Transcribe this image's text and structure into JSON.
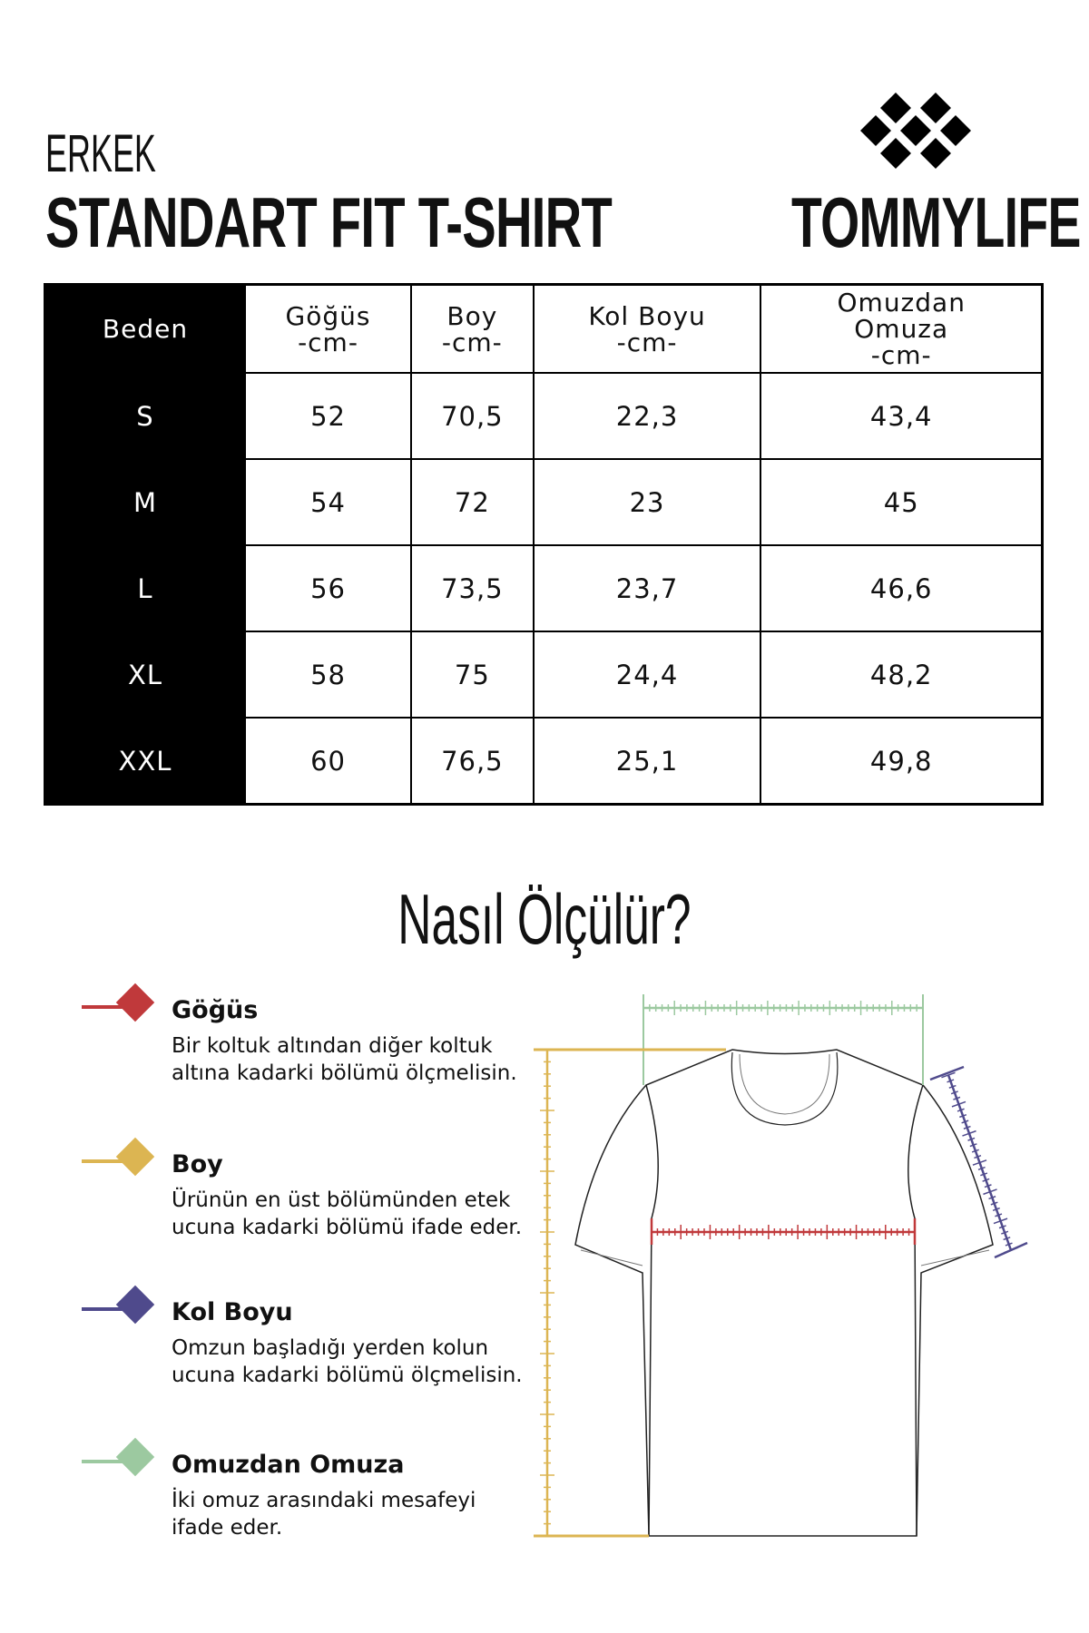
{
  "header": {
    "subtitle": "ERKEK",
    "title": "STANDART FIT T-SHIRT",
    "brand": "TOMMYLIFE"
  },
  "table": {
    "headers": [
      [
        "Beden",
        ""
      ],
      [
        "Göğüs",
        "-cm-"
      ],
      [
        "Boy",
        "-cm-"
      ],
      [
        "Kol Boyu",
        "-cm-"
      ],
      [
        "Omuzdan Omuza",
        "-cm-"
      ]
    ],
    "rows": [
      [
        "S",
        "52",
        "70,5",
        "22,3",
        "43,4"
      ],
      [
        "M",
        "54",
        "72",
        "23",
        "45"
      ],
      [
        "L",
        "56",
        "73,5",
        "23,7",
        "46,6"
      ],
      [
        "XL",
        "58",
        "75",
        "24,4",
        "48,2"
      ],
      [
        "XXL",
        "60",
        "76,5",
        "25,1",
        "49,8"
      ]
    ]
  },
  "how": {
    "title": "Nasıl Ölçülür?"
  },
  "legend": [
    {
      "title": "Göğüs",
      "desc": "Bir koltuk altından diğer koltuk altına kadarki bölümü ölçmelisin.",
      "color": "#c0393b"
    },
    {
      "title": "Boy",
      "desc": "Ürünün en üst bölümünden etek ucuna kadarki bölümü ifade eder.",
      "color": "#dcb552"
    },
    {
      "title": "Kol Boyu",
      "desc": "Omzun başladığı yerden kolun ucuna kadarki bölümü ölçmelisin.",
      "color": "#4f4a8c"
    },
    {
      "title": "Omuzdan Omuza",
      "desc": "İki omuz arasındaki mesafeyi ifade eder.",
      "color": "#9cc9a0"
    }
  ]
}
